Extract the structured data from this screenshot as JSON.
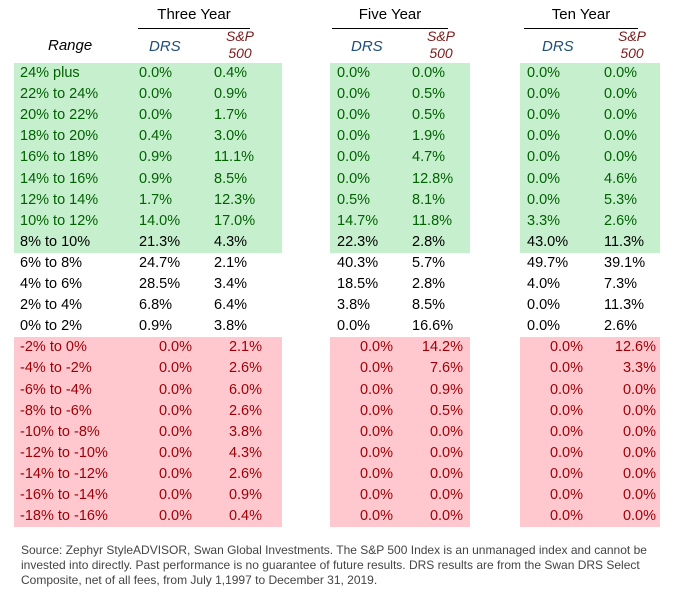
{
  "chart_data": {
    "type": "table",
    "periods": [
      "Three Year",
      "Five Year",
      "Ten Year"
    ],
    "columns": {
      "range": "Range",
      "drs": "DRS",
      "sp": "S&P\n500"
    },
    "rows": [
      {
        "range": "24% plus",
        "group": "green",
        "values": [
          "0.0%",
          "0.4%",
          "0.0%",
          "0.0%",
          "0.0%",
          "0.0%"
        ]
      },
      {
        "range": "22% to 24%",
        "group": "green",
        "values": [
          "0.0%",
          "0.9%",
          "0.0%",
          "0.5%",
          "0.0%",
          "0.0%"
        ]
      },
      {
        "range": "20% to 22%",
        "group": "green",
        "values": [
          "0.0%",
          "1.7%",
          "0.0%",
          "0.5%",
          "0.0%",
          "0.0%"
        ]
      },
      {
        "range": "18% to 20%",
        "group": "green",
        "values": [
          "0.4%",
          "3.0%",
          "0.0%",
          "1.9%",
          "0.0%",
          "0.0%"
        ]
      },
      {
        "range": "16% to 18%",
        "group": "green",
        "values": [
          "0.9%",
          "11.1%",
          "0.0%",
          "4.7%",
          "0.0%",
          "0.0%"
        ]
      },
      {
        "range": "14% to 16%",
        "group": "green",
        "values": [
          "0.9%",
          "8.5%",
          "0.0%",
          "12.8%",
          "0.0%",
          "4.6%"
        ]
      },
      {
        "range": "12% to 14%",
        "group": "green",
        "values": [
          "1.7%",
          "12.3%",
          "0.5%",
          "8.1%",
          "0.0%",
          "5.3%"
        ]
      },
      {
        "range": "10% to 12%",
        "group": "green",
        "values": [
          "14.0%",
          "17.0%",
          "14.7%",
          "11.8%",
          "3.3%",
          "2.6%"
        ]
      },
      {
        "range": "8% to 10%",
        "group": "greenk",
        "values": [
          "21.3%",
          "4.3%",
          "22.3%",
          "2.8%",
          "43.0%",
          "11.3%"
        ]
      },
      {
        "range": "6% to 8%",
        "group": "white",
        "values": [
          "24.7%",
          "2.1%",
          "40.3%",
          "5.7%",
          "49.7%",
          "39.1%"
        ]
      },
      {
        "range": "4% to 6%",
        "group": "white",
        "values": [
          "28.5%",
          "3.4%",
          "18.5%",
          "2.8%",
          "4.0%",
          "7.3%"
        ]
      },
      {
        "range": "2% to 4%",
        "group": "white",
        "values": [
          "6.8%",
          "6.4%",
          "3.8%",
          "8.5%",
          "0.0%",
          "11.3%"
        ]
      },
      {
        "range": "0% to 2%",
        "group": "white",
        "values": [
          "0.9%",
          "3.8%",
          "0.0%",
          "16.6%",
          "0.0%",
          "2.6%"
        ]
      },
      {
        "range": "-2% to 0%",
        "group": "red",
        "values": [
          "0.0%",
          "2.1%",
          "0.0%",
          "14.2%",
          "0.0%",
          "12.6%"
        ]
      },
      {
        "range": "-4% to -2%",
        "group": "red",
        "values": [
          "0.0%",
          "2.6%",
          "0.0%",
          "7.6%",
          "0.0%",
          "3.3%"
        ]
      },
      {
        "range": "-6% to -4%",
        "group": "red",
        "values": [
          "0.0%",
          "6.0%",
          "0.0%",
          "0.9%",
          "0.0%",
          "0.0%"
        ]
      },
      {
        "range": "-8% to -6%",
        "group": "red",
        "values": [
          "0.0%",
          "2.6%",
          "0.0%",
          "0.5%",
          "0.0%",
          "0.0%"
        ]
      },
      {
        "range": "-10% to -8%",
        "group": "red",
        "values": [
          "0.0%",
          "3.8%",
          "0.0%",
          "0.0%",
          "0.0%",
          "0.0%"
        ]
      },
      {
        "range": "-12% to -10%",
        "group": "red",
        "values": [
          "0.0%",
          "4.3%",
          "0.0%",
          "0.0%",
          "0.0%",
          "0.0%"
        ]
      },
      {
        "range": "-14% to -12%",
        "group": "red",
        "values": [
          "0.0%",
          "2.6%",
          "0.0%",
          "0.0%",
          "0.0%",
          "0.0%"
        ]
      },
      {
        "range": "-16% to -14%",
        "group": "red",
        "values": [
          "0.0%",
          "0.9%",
          "0.0%",
          "0.0%",
          "0.0%",
          "0.0%"
        ]
      },
      {
        "range": "-18% to -16%",
        "group": "red",
        "values": [
          "0.0%",
          "0.4%",
          "0.0%",
          "0.0%",
          "0.0%",
          "0.0%"
        ]
      }
    ]
  },
  "source": "Source: Zephyr StyleADVISOR, Swan Global Investments. The S&P 500 Index is an unmanaged index and cannot be invested into directly. Past performance is no guarantee of future results. DRS results are from the Swan DRS Select Composite, net of all fees, from July 1,1997 to December 31, 2019.",
  "colors": {
    "green_fill": "#c6efce",
    "green_text": "#006100",
    "red_fill": "#ffc7ce",
    "red_text": "#9c0006",
    "drs_header": "#1f4e79",
    "sp_header": "#7b1b1b"
  }
}
